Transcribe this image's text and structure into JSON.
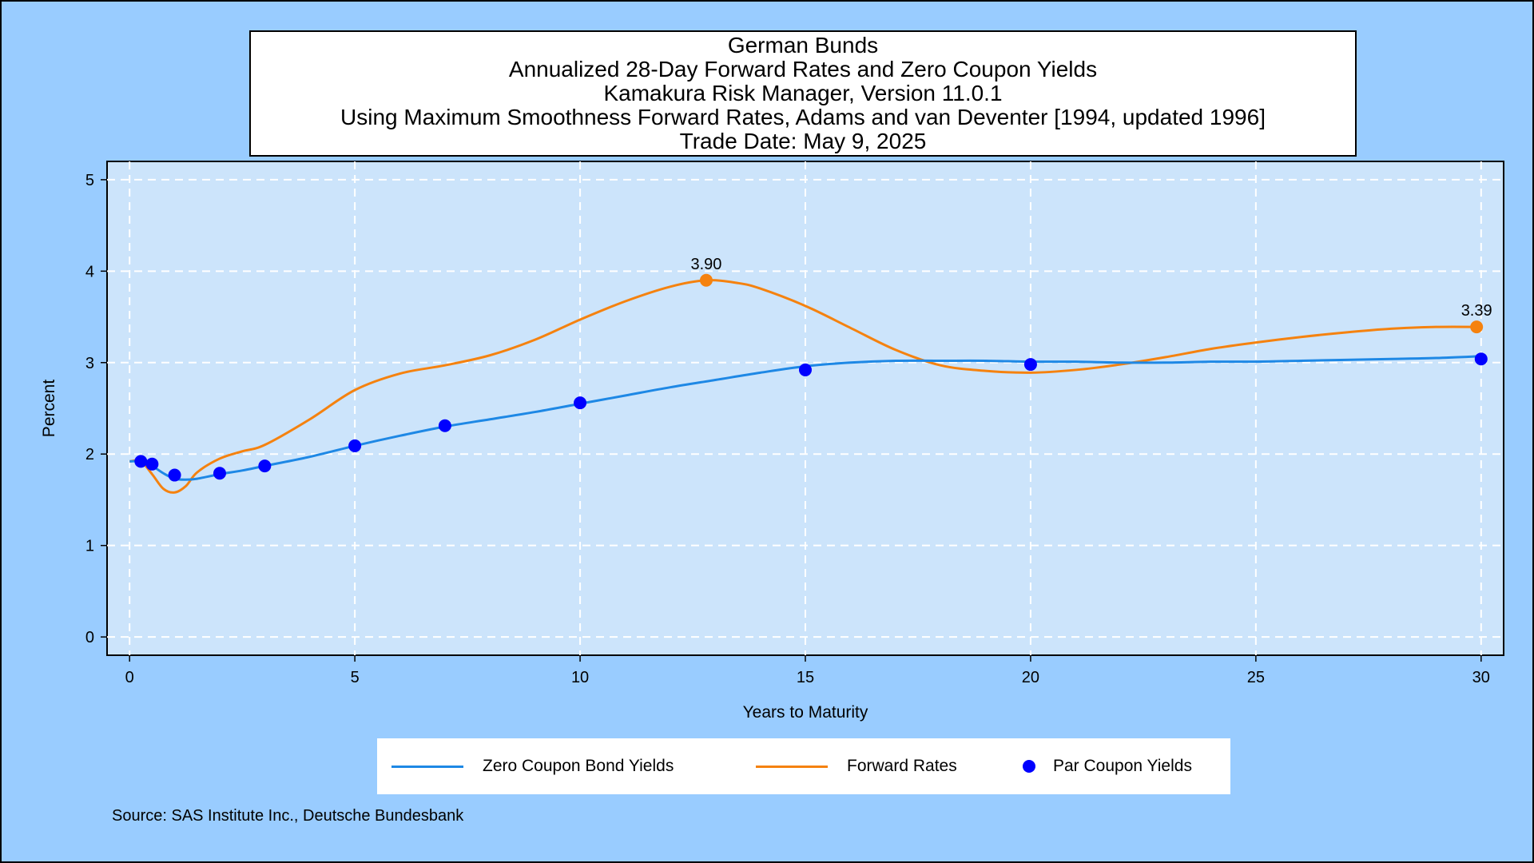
{
  "title_lines": [
    "German Bunds",
    "Annualized 28-Day Forward Rates and Zero Coupon Yields",
    "Kamakura Risk Manager, Version 11.0.1",
    "Using Maximum Smoothness Forward Rates, Adams and van Deventer [1994, updated 1996]",
    "Trade Date: May 9, 2025"
  ],
  "source": "Source: SAS Institute Inc., Deutsche Bundesbank",
  "legend": {
    "zero": "Zero Coupon Bond Yields",
    "forward": "Forward Rates",
    "par": "Par Coupon Yields"
  },
  "colors": {
    "background": "#99ccff",
    "plot_area": "#cce4fb",
    "zero": "#1e88e5",
    "forward": "#f5820f",
    "par": "#0000ff"
  },
  "chart_data": {
    "type": "line",
    "xlabel": "Years to Maturity",
    "ylabel": "Percent",
    "xlim": [
      -0.5,
      30.5
    ],
    "ylim": [
      -0.2,
      5.2
    ],
    "xticks": [
      0,
      5,
      10,
      15,
      20,
      25,
      30
    ],
    "yticks": [
      0,
      1,
      2,
      3,
      4,
      5
    ],
    "grid": true,
    "legend_position": "bottom",
    "series": [
      {
        "name": "Zero Coupon Bond Yields",
        "kind": "line",
        "x": [
          0,
          0.25,
          0.5,
          0.75,
          1,
          1.25,
          1.5,
          2,
          2.5,
          3,
          4,
          5,
          6,
          7,
          8,
          9,
          10,
          11,
          12,
          13,
          14,
          15,
          16,
          17,
          18,
          19,
          20,
          21,
          22,
          23,
          24,
          25,
          26,
          27,
          28,
          29,
          30
        ],
        "y": [
          1.92,
          1.92,
          1.87,
          1.79,
          1.73,
          1.72,
          1.73,
          1.78,
          1.82,
          1.87,
          1.97,
          2.09,
          2.2,
          2.3,
          2.38,
          2.46,
          2.55,
          2.64,
          2.73,
          2.81,
          2.89,
          2.96,
          3.0,
          3.02,
          3.02,
          3.02,
          3.01,
          3.01,
          3.0,
          3.0,
          3.01,
          3.01,
          3.02,
          3.03,
          3.04,
          3.05,
          3.07
        ]
      },
      {
        "name": "Forward Rates",
        "kind": "line",
        "x": [
          0,
          0.25,
          0.5,
          0.75,
          1,
          1.25,
          1.5,
          2,
          2.5,
          3,
          4,
          5,
          6,
          7,
          8,
          9,
          10,
          11,
          12,
          12.8,
          13.5,
          14,
          15,
          16,
          17,
          18,
          19,
          20,
          21,
          22,
          23,
          24,
          25,
          26,
          27,
          28,
          29,
          30
        ],
        "y": [
          1.92,
          1.92,
          1.78,
          1.62,
          1.58,
          1.65,
          1.8,
          1.95,
          2.03,
          2.1,
          2.38,
          2.7,
          2.88,
          2.97,
          3.08,
          3.25,
          3.47,
          3.67,
          3.83,
          3.9,
          3.87,
          3.81,
          3.62,
          3.38,
          3.14,
          2.97,
          2.91,
          2.89,
          2.92,
          2.98,
          3.06,
          3.15,
          3.22,
          3.28,
          3.33,
          3.37,
          3.39,
          3.39
        ]
      },
      {
        "name": "Par Coupon Yields",
        "kind": "scatter",
        "x": [
          0.25,
          0.5,
          1,
          2,
          3,
          5,
          7,
          10,
          15,
          20,
          30
        ],
        "y": [
          1.92,
          1.89,
          1.77,
          1.79,
          1.87,
          2.09,
          2.31,
          2.56,
          2.92,
          2.98,
          3.04
        ]
      }
    ],
    "annotations": [
      {
        "series": "Forward Rates",
        "x": 12.8,
        "y": 3.9,
        "label": "3.90"
      },
      {
        "series": "Forward Rates",
        "x": 29.9,
        "y": 3.39,
        "label": "3.39"
      }
    ]
  }
}
